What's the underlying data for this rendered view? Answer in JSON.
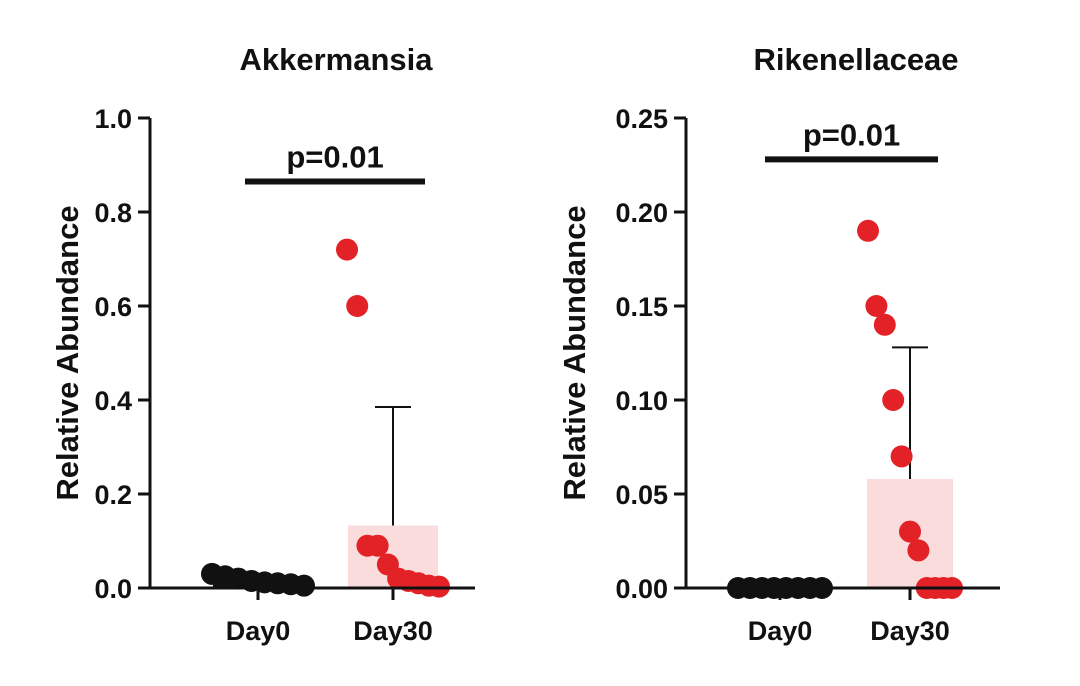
{
  "colors": {
    "axis": "#111111",
    "day0_points": "#111111",
    "day30_points": "#e32227",
    "day30_bar": "#fadcdc",
    "errorbar": "#111111"
  },
  "chart_data": [
    {
      "type": "bar",
      "title": "Akkermansia",
      "xlabel": "",
      "ylabel": "Relative Abundance",
      "categories": [
        "Day0",
        "Day30"
      ],
      "ylim": [
        0,
        1.0
      ],
      "yticks": [
        0.0,
        0.2,
        0.4,
        0.6,
        0.8,
        1.0
      ],
      "ytick_labels": [
        "0.0",
        "0.2",
        "0.4",
        "0.6",
        "0.8",
        "1.0"
      ],
      "bar_means": [
        0.01,
        0.133
      ],
      "error_upper": [
        0.01,
        0.385
      ],
      "points": [
        [
          0.03,
          0.025,
          0.02,
          0.015,
          0.012,
          0.01,
          0.008,
          0.005
        ],
        [
          0.72,
          0.6,
          0.09,
          0.09,
          0.05,
          0.02,
          0.015,
          0.01,
          0.005,
          0.003
        ]
      ],
      "annotation": {
        "text": "p=0.01",
        "from": "Day0",
        "to": "Day30",
        "y": 0.865
      }
    },
    {
      "type": "bar",
      "title": "Rikenellaceae",
      "xlabel": "",
      "ylabel": "Relative Abundance",
      "categories": [
        "Day0",
        "Day30"
      ],
      "ylim": [
        0,
        0.25
      ],
      "yticks": [
        0.0,
        0.05,
        0.1,
        0.15,
        0.2,
        0.25
      ],
      "ytick_labels": [
        "0.00",
        "0.05",
        "0.10",
        "0.15",
        "0.20",
        "0.25"
      ],
      "bar_means": [
        0.0,
        0.058
      ],
      "error_upper": [
        0.0,
        0.128
      ],
      "points": [
        [
          0.0,
          0.0,
          0.0,
          0.0,
          0.0,
          0.0,
          0.0,
          0.0
        ],
        [
          0.19,
          0.15,
          0.14,
          0.1,
          0.07,
          0.03,
          0.02,
          0.0,
          0.0,
          0.0,
          0.0
        ]
      ],
      "annotation": {
        "text": "p=0.01",
        "from": "Day0",
        "to": "Day30",
        "y": 0.228
      }
    }
  ]
}
